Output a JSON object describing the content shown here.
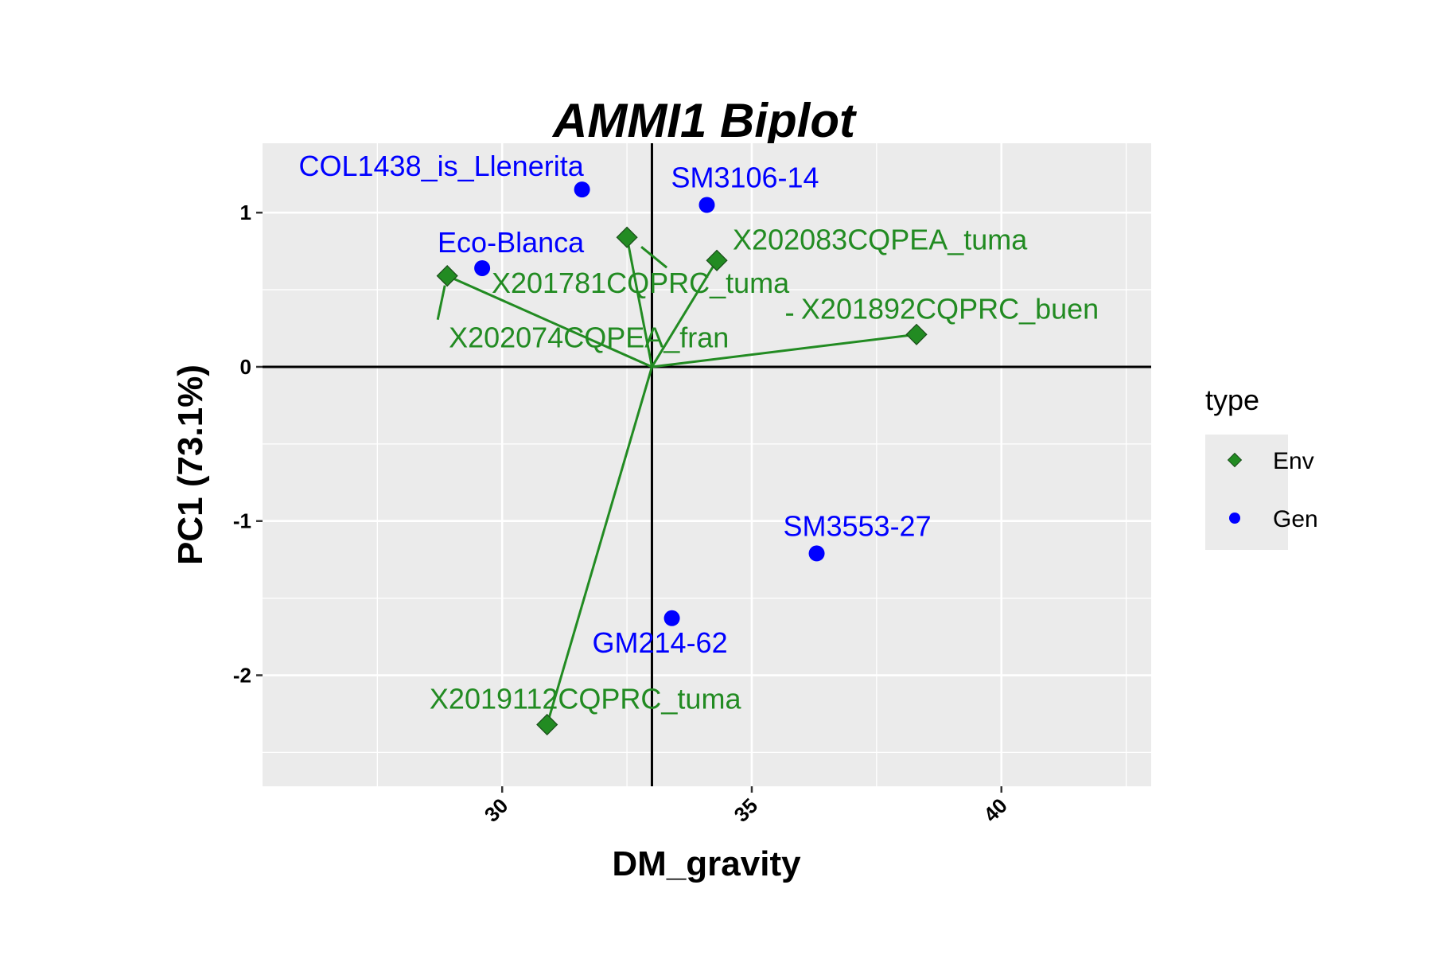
{
  "chart_data": {
    "type": "scatter",
    "title": "AMMI1 Biplot",
    "xlabel": "DM_gravity",
    "ylabel": "PC1 (73.1%)",
    "xlim": [
      25.2,
      43.0
    ],
    "ylim": [
      -2.72,
      1.45
    ],
    "x_ticks": [
      30,
      35,
      40
    ],
    "y_ticks": [
      -2,
      -1,
      0,
      1
    ],
    "origin": [
      33.0,
      0.0
    ],
    "grid": true,
    "legend": {
      "title": "type",
      "position": "right",
      "entries": [
        {
          "label": "Env",
          "shape": "diamond",
          "color": "#228B22"
        },
        {
          "label": "Gen",
          "shape": "circle",
          "color": "#0000FF"
        }
      ]
    },
    "colors": {
      "Env": "#228B22",
      "Gen": "#0000FF",
      "panel": "#EBEBEB",
      "grid": "#FFFFFF",
      "axis_line": "#000000"
    },
    "series": [
      {
        "name": "Env",
        "points": [
          {
            "label": "X202083CQPEA_tuma",
            "x": 34.3,
            "y": 0.69
          },
          {
            "label": "X201781CQPRC_tuma",
            "x": 32.5,
            "y": 0.84
          },
          {
            "label": "X202074CQPEA_fran",
            "x": 28.9,
            "y": 0.59
          },
          {
            "label": "X201892CQPRC_buen",
            "x": 38.3,
            "y": 0.21
          },
          {
            "label": "X2019112CQPRC_tuma",
            "x": 30.9,
            "y": -2.32
          }
        ]
      },
      {
        "name": "Gen",
        "points": [
          {
            "label": "COL1438_is_Llenerita",
            "x": 31.6,
            "y": 1.15
          },
          {
            "label": "SM3106-14",
            "x": 34.1,
            "y": 1.05
          },
          {
            "label": "Eco-Blanca",
            "x": 29.6,
            "y": 0.64
          },
          {
            "label": "SM3553-27",
            "x": 36.3,
            "y": -1.21
          },
          {
            "label": "GM214-62",
            "x": 33.4,
            "y": -1.63
          }
        ]
      }
    ]
  }
}
